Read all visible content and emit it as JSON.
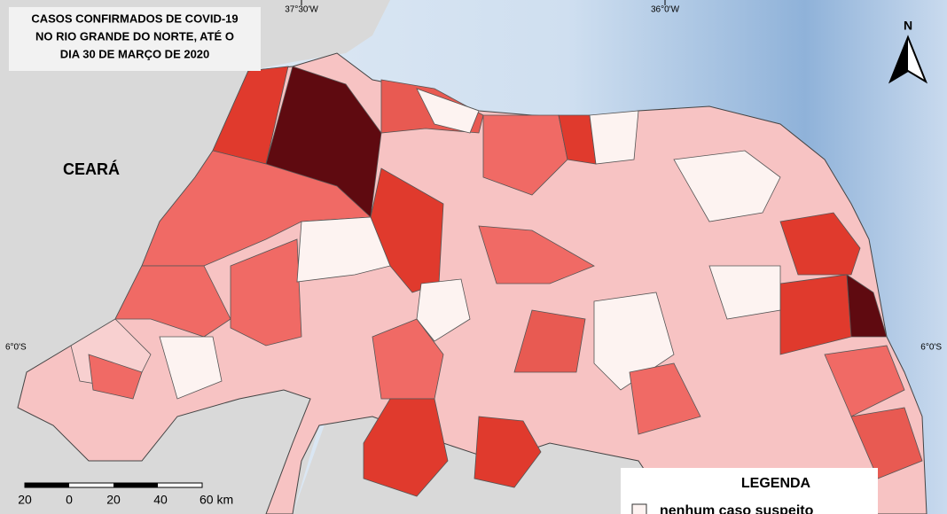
{
  "title": [
    "CASOS CONFIRMADOS DE COVID-19",
    "NO RIO GRANDE DO NORTE, ATÉ O",
    "DIA 30 DE MARÇO DE 2020"
  ],
  "neighbor_label": "CEARÁ",
  "graticule": {
    "top": [
      "37°30'W",
      "36°0'W"
    ],
    "left": "6°0'S",
    "right": "6°0'S"
  },
  "north_arrow": "N",
  "scale_bar": [
    "20",
    "0",
    "20",
    "40",
    "60 km"
  ],
  "legend": {
    "title": "LEGENDA",
    "items": [
      "nenhum caso suspeito"
    ]
  }
}
